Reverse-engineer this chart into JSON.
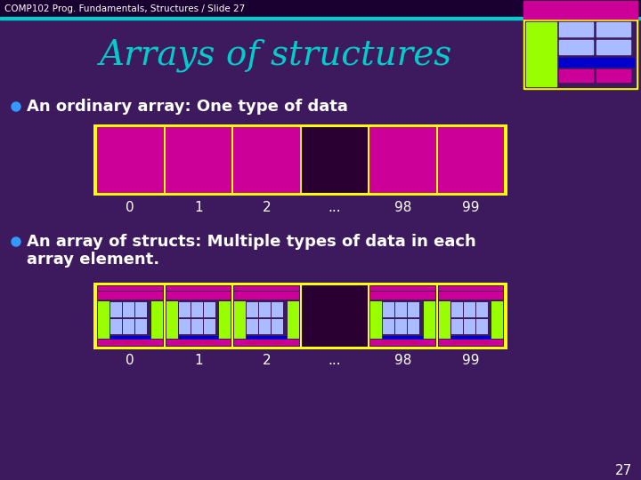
{
  "bg_color": "#3d1a5e",
  "header_bg": "#1a0030",
  "slide_title": "Arrays of structures",
  "slide_title_color": "#00cccc",
  "slide_title_fontsize": 28,
  "header_text": "COMP102 Prog. Fundamentals, Structures / Slide 27",
  "header_text_color": "#ffffff",
  "header_text_fontsize": 7.5,
  "bullet_color": "#3399ff",
  "bullet_text_color": "#ffffff",
  "bullet_fontsize": 13,
  "bullet1": "An ordinary array: One type of data",
  "bullet2_line1": "An array of structs: Multiple types of data in each",
  "bullet2_line2": "array element.",
  "yellow_border": "#ffff00",
  "magenta": "#cc0099",
  "dark_cell": "#2a0033",
  "green": "#99ff00",
  "blue": "#0000cc",
  "light_blue": "#aabbff",
  "pink_small": "#cc0077",
  "index_labels": [
    "0",
    "1",
    "2",
    "...",
    "98",
    "99"
  ],
  "page_number": "27",
  "page_number_color": "#ffffff"
}
